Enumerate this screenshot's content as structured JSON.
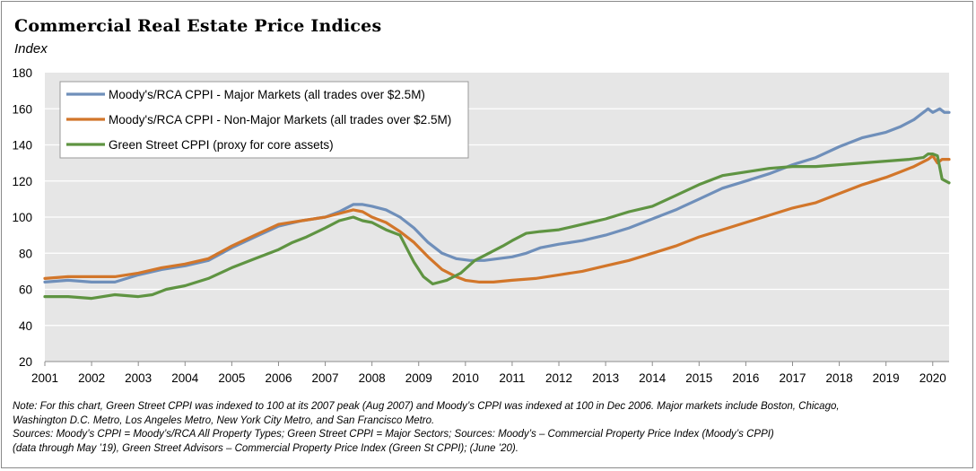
{
  "title": "Commercial Real Estate Price Indices",
  "subtitle": "Index",
  "notes": [
    "Note: For this chart, Green Street CPPI was indexed to 100 at its 2007 peak (Aug 2007) and Moody’s CPPI was indexed at 100 in Dec 2006. Major markets include Boston, Chicago,",
    "Washington D.C. Metro, Los Angeles Metro, New York City Metro, and San Francisco Metro.",
    "Sources: Moody’s CPPI = Moody’s/RCA All Property Types; Green Street CPPI = Major Sectors; Sources: Moody’s – Commercial Property Price Index (Moody’s CPPI)",
    "(data through May ’19), Green Street Advisors – Commercial Property Price Index (Green St CPPI); (June ’20)."
  ],
  "colors": {
    "major": "#6f8fba",
    "nonmajor": "#d2762a",
    "green": "#5f9442",
    "plot_bg": "#e6e6e6",
    "grid": "#ffffff"
  },
  "chart_data": {
    "type": "line",
    "xlabel": "",
    "ylabel": "",
    "ylim": [
      20,
      180
    ],
    "yticks": [
      20,
      40,
      60,
      80,
      100,
      120,
      140,
      160,
      180
    ],
    "xlim": [
      2001,
      2020.35
    ],
    "xticks": [
      "2001",
      "2002",
      "2003",
      "2004",
      "2005",
      "2006",
      "2007",
      "2008",
      "2009",
      "2010",
      "2011",
      "2012",
      "2013",
      "2014",
      "2015",
      "2016",
      "2017",
      "2018",
      "2019",
      "2020"
    ],
    "grid": "horizontal",
    "legend_position": "top-left",
    "series": [
      {
        "name": "Moody's/RCA CPPI - Major Markets  (all trades over $2.5M)",
        "color": "#6f8fba",
        "x": [
          2001,
          2001.5,
          2002,
          2002.5,
          2003,
          2003.5,
          2004,
          2004.5,
          2005,
          2005.5,
          2006,
          2006.5,
          2007,
          2007.3,
          2007.6,
          2007.8,
          2008,
          2008.3,
          2008.6,
          2008.9,
          2009.2,
          2009.5,
          2009.8,
          2010.1,
          2010.4,
          2010.7,
          2011,
          2011.3,
          2011.6,
          2012,
          2012.5,
          2013,
          2013.5,
          2014,
          2014.5,
          2015,
          2015.5,
          2016,
          2016.5,
          2017,
          2017.5,
          2018,
          2018.5,
          2019,
          2019.3,
          2019.6,
          2019.8,
          2019.9,
          2020,
          2020.15,
          2020.25,
          2020.35
        ],
        "values": [
          64,
          65,
          64,
          64,
          68,
          71,
          73,
          76,
          83,
          89,
          95,
          98,
          100,
          103,
          107,
          107,
          106,
          104,
          100,
          94,
          86,
          80,
          77,
          76,
          76,
          77,
          78,
          80,
          83,
          85,
          87,
          90,
          94,
          99,
          104,
          110,
          116,
          120,
          124,
          129,
          133,
          139,
          144,
          147,
          150,
          154,
          158,
          160,
          158,
          160,
          158,
          158
        ]
      },
      {
        "name": "Moody's/RCA CPPI - Non-Major Markets  (all trades over $2.5M)",
        "color": "#d2762a",
        "x": [
          2001,
          2001.5,
          2002,
          2002.5,
          2003,
          2003.5,
          2004,
          2004.5,
          2005,
          2005.5,
          2006,
          2006.5,
          2007,
          2007.3,
          2007.6,
          2007.8,
          2008,
          2008.3,
          2008.6,
          2008.9,
          2009.2,
          2009.5,
          2009.8,
          2010,
          2010.3,
          2010.6,
          2011,
          2011.5,
          2012,
          2012.5,
          2013,
          2013.5,
          2014,
          2014.5,
          2015,
          2015.5,
          2016,
          2016.5,
          2017,
          2017.5,
          2018,
          2018.5,
          2019,
          2019.3,
          2019.6,
          2019.9,
          2020,
          2020.1,
          2020.2,
          2020.35
        ],
        "values": [
          66,
          67,
          67,
          67,
          69,
          72,
          74,
          77,
          84,
          90,
          96,
          98,
          100,
          102,
          104,
          103,
          100,
          97,
          92,
          86,
          78,
          71,
          67,
          65,
          64,
          64,
          65,
          66,
          68,
          70,
          73,
          76,
          80,
          84,
          89,
          93,
          97,
          101,
          105,
          108,
          113,
          118,
          122,
          125,
          128,
          132,
          134,
          130,
          132,
          132
        ]
      },
      {
        "name": "Green Street CPPI (proxy for core assets)",
        "color": "#5f9442",
        "x": [
          2001,
          2001.5,
          2002,
          2002.5,
          2003,
          2003.3,
          2003.6,
          2004,
          2004.5,
          2005,
          2005.5,
          2006,
          2006.3,
          2006.6,
          2007,
          2007.3,
          2007.6,
          2007.8,
          2008,
          2008.3,
          2008.6,
          2008.8,
          2008.9,
          2009.1,
          2009.3,
          2009.6,
          2009.9,
          2010.2,
          2010.5,
          2010.8,
          2011,
          2011.3,
          2011.6,
          2012,
          2012.5,
          2013,
          2013.5,
          2014,
          2014.5,
          2015,
          2015.5,
          2016,
          2016.5,
          2017,
          2017.5,
          2018,
          2018.5,
          2019,
          2019.5,
          2019.8,
          2019.9,
          2020,
          2020.1,
          2020.2,
          2020.35
        ],
        "values": [
          56,
          56,
          55,
          57,
          56,
          57,
          60,
          62,
          66,
          72,
          77,
          82,
          86,
          89,
          94,
          98,
          100,
          98,
          97,
          93,
          90,
          80,
          75,
          67,
          63,
          65,
          69,
          76,
          80,
          84,
          87,
          91,
          92,
          93,
          96,
          99,
          103,
          106,
          112,
          118,
          123,
          125,
          127,
          128,
          128,
          129,
          130,
          131,
          132,
          133,
          135,
          135,
          134,
          121,
          119
        ]
      }
    ]
  }
}
